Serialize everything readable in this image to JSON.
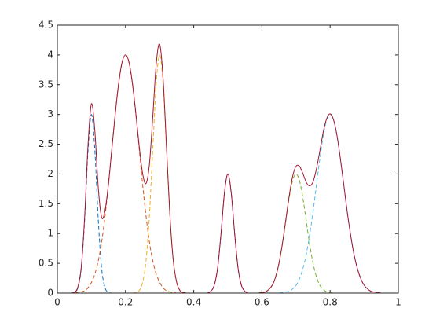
{
  "chart_data": {
    "type": "line",
    "xlim": [
      0,
      1
    ],
    "ylim": [
      0,
      4.5
    ],
    "xticks": [
      0,
      0.2,
      0.4,
      0.6,
      0.8,
      1
    ],
    "yticks": [
      0,
      0.5,
      1,
      1.5,
      2,
      2.5,
      3,
      3.5,
      4,
      4.5
    ],
    "grid": false,
    "series": [
      {
        "color": "#0072bd",
        "dash": true,
        "x": [
          0.04,
          0.05,
          0.06,
          0.07,
          0.08,
          0.09,
          0.1,
          0.11,
          0.12,
          0.13,
          0.14,
          0.15,
          0.16
        ],
        "values": [
          0,
          0.01,
          0.09,
          0.41,
          1.23,
          2.4,
          3,
          2.4,
          1.23,
          0.41,
          0.09,
          0.01,
          0
        ]
      },
      {
        "color": "#d95319",
        "dash": true,
        "x": [
          0.05,
          0.06,
          0.07,
          0.08,
          0.09,
          0.1,
          0.11,
          0.12,
          0.13,
          0.14,
          0.15,
          0.16,
          0.17,
          0.18,
          0.19,
          0.2,
          0.21,
          0.22,
          0.23,
          0.24,
          0.25,
          0.26,
          0.27,
          0.28,
          0.29,
          0.3,
          0.31,
          0.32,
          0.33,
          0.34,
          0.35
        ],
        "values": [
          0,
          0.01,
          0.02,
          0.04,
          0.09,
          0.18,
          0.32,
          0.54,
          0.86,
          1.3,
          1.83,
          2.43,
          3.02,
          3.53,
          3.88,
          4,
          3.88,
          3.53,
          3.02,
          2.43,
          1.83,
          1.3,
          0.86,
          0.54,
          0.32,
          0.18,
          0.09,
          0.04,
          0.02,
          0.01,
          0
        ]
      },
      {
        "color": "#edb120",
        "dash": true,
        "x": [
          0.22,
          0.23,
          0.24,
          0.25,
          0.26,
          0.27,
          0.28,
          0.29,
          0.3,
          0.31,
          0.32,
          0.33,
          0.34,
          0.35,
          0.36,
          0.37,
          0.38
        ],
        "values": [
          0,
          0.01,
          0.04,
          0.18,
          0.54,
          1.3,
          2.43,
          3.53,
          4,
          3.53,
          2.43,
          1.3,
          0.54,
          0.18,
          0.04,
          0.01,
          0
        ]
      },
      {
        "color": "#7e2f8e",
        "dash": true,
        "x": [
          0.44,
          0.45,
          0.46,
          0.47,
          0.48,
          0.49,
          0.5,
          0.51,
          0.52,
          0.53,
          0.54,
          0.55,
          0.56
        ],
        "values": [
          0,
          0.03,
          0.13,
          0.42,
          1,
          1.68,
          2,
          1.68,
          1,
          0.42,
          0.13,
          0.03,
          0
        ]
      },
      {
        "color": "#77ac30",
        "dash": true,
        "x": [
          0.59,
          0.6,
          0.61,
          0.62,
          0.63,
          0.64,
          0.65,
          0.66,
          0.67,
          0.68,
          0.69,
          0.7,
          0.71,
          0.72,
          0.73,
          0.74,
          0.75,
          0.76,
          0.77,
          0.78,
          0.79,
          0.8,
          0.81
        ],
        "values": [
          0,
          0.01,
          0.02,
          0.06,
          0.13,
          0.27,
          0.5,
          0.82,
          1.21,
          1.6,
          1.89,
          2,
          1.89,
          1.6,
          1.21,
          0.82,
          0.5,
          0.27,
          0.13,
          0.06,
          0.02,
          0.01,
          0
        ]
      },
      {
        "color": "#4dbeee",
        "dash": true,
        "x": [
          0.65,
          0.66,
          0.67,
          0.68,
          0.69,
          0.7,
          0.71,
          0.72,
          0.73,
          0.74,
          0.75,
          0.76,
          0.77,
          0.78,
          0.79,
          0.8,
          0.81,
          0.82,
          0.83,
          0.84,
          0.85,
          0.86,
          0.87,
          0.88,
          0.89,
          0.9,
          0.91,
          0.92,
          0.93,
          0.94,
          0.95
        ],
        "values": [
          0,
          0.01,
          0.02,
          0.03,
          0.07,
          0.13,
          0.24,
          0.41,
          0.65,
          0.98,
          1.37,
          1.82,
          2.26,
          2.65,
          2.91,
          3,
          2.91,
          2.65,
          2.26,
          1.82,
          1.37,
          0.98,
          0.65,
          0.41,
          0.24,
          0.13,
          0.07,
          0.03,
          0.02,
          0.01,
          0
        ]
      },
      {
        "color": "#a2142f",
        "dash": false,
        "x": [
          0,
          0.01,
          0.02,
          0.03,
          0.04,
          0.05,
          0.06,
          0.07,
          0.08,
          0.09,
          0.1,
          0.11,
          0.12,
          0.13,
          0.14,
          0.15,
          0.16,
          0.17,
          0.18,
          0.19,
          0.2,
          0.21,
          0.22,
          0.23,
          0.24,
          0.25,
          0.26,
          0.27,
          0.28,
          0.29,
          0.3,
          0.31,
          0.32,
          0.33,
          0.34,
          0.35,
          0.36,
          0.37,
          0.38,
          0.39,
          0.4,
          0.41,
          0.42,
          0.43,
          0.44,
          0.45,
          0.46,
          0.47,
          0.48,
          0.49,
          0.5,
          0.51,
          0.52,
          0.53,
          0.54,
          0.55,
          0.56,
          0.57,
          0.58,
          0.59,
          0.6,
          0.61,
          0.62,
          0.63,
          0.64,
          0.65,
          0.66,
          0.67,
          0.68,
          0.69,
          0.7,
          0.71,
          0.72,
          0.73,
          0.74,
          0.75,
          0.76,
          0.77,
          0.78,
          0.79,
          0.8,
          0.81,
          0.82,
          0.83,
          0.84,
          0.85,
          0.86,
          0.87,
          0.88,
          0.89,
          0.9,
          0.91,
          0.92,
          0.93,
          0.94,
          0.95,
          0.96,
          0.97,
          0.98,
          0.99,
          1
        ],
        "values": [
          0,
          0,
          0,
          0,
          0,
          0.01,
          0.1,
          0.43,
          1.27,
          2.49,
          3.18,
          2.72,
          1.77,
          1.27,
          1.39,
          1.84,
          2.43,
          3.02,
          3.53,
          3.88,
          4,
          3.88,
          3.53,
          3.03,
          2.47,
          2.01,
          1.84,
          2.16,
          2.97,
          3.85,
          4.18,
          3.62,
          2.47,
          1.32,
          0.55,
          0.18,
          0.04,
          0.01,
          0,
          0,
          0,
          0,
          0,
          0,
          0,
          0.03,
          0.13,
          0.42,
          1,
          1.68,
          2,
          1.68,
          1,
          0.42,
          0.13,
          0.03,
          0,
          0,
          0,
          0,
          0.01,
          0.02,
          0.06,
          0.13,
          0.27,
          0.5,
          0.83,
          1.23,
          1.63,
          1.96,
          2.13,
          2.13,
          2.01,
          1.86,
          1.8,
          1.87,
          2.09,
          2.39,
          2.71,
          2.93,
          3.01,
          2.91,
          2.65,
          2.26,
          1.82,
          1.37,
          0.98,
          0.65,
          0.41,
          0.24,
          0.13,
          0.07,
          0.03,
          0.02,
          0.01,
          0,
          0,
          0,
          0,
          0,
          0
        ]
      }
    ]
  }
}
